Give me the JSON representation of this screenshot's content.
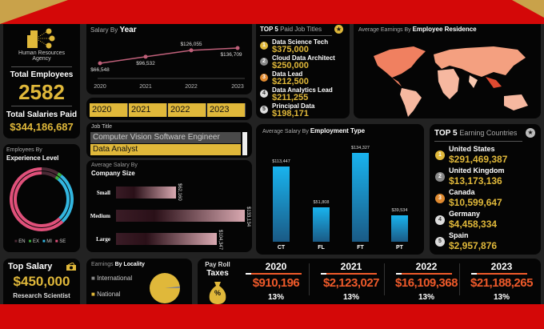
{
  "colors": {
    "accent": "#e0b83a",
    "banner": "#d40808",
    "bar_blue": "#19b3ee",
    "payroll": "#ef5a2a"
  },
  "agency": {
    "icon": "building-people-icon",
    "name": "Human Resources Agency"
  },
  "total_employees": {
    "label": "Total Employees",
    "value": "2582"
  },
  "total_salaries": {
    "label": "Total Salaries Paid",
    "value": "$344,186,687"
  },
  "experience": {
    "title_light": "Employees By",
    "title_bold": "Experience Level",
    "legend": [
      {
        "label": "EN",
        "color": "#4a2a35",
        "share": 9
      },
      {
        "label": "EX",
        "color": "#3cae3c",
        "share": 2
      },
      {
        "label": "MI",
        "color": "#32b6e0",
        "share": 27
      },
      {
        "label": "SE",
        "color": "#e0507a",
        "share": 62
      }
    ]
  },
  "salary_by_year": {
    "title_light": "Salary By",
    "title_bold": "Year",
    "points": [
      {
        "year": "2020",
        "value": 66548,
        "label": "$66,548"
      },
      {
        "year": "2021",
        "value": 96532,
        "label": "$96,532"
      },
      {
        "year": "2022",
        "value": 126055,
        "label": "$126,055"
      },
      {
        "year": "2023",
        "value": 136709,
        "label": "$136,709"
      }
    ]
  },
  "year_slicer": [
    "2020",
    "2021",
    "2022",
    "2023"
  ],
  "job_title": {
    "label": "Job Title",
    "options": [
      "Computer Vision Software Engineer",
      "Data Analyst"
    ],
    "selected": "Data Analyst"
  },
  "company_size": {
    "title_light": "Average Salary By",
    "title_bold": "Company Size",
    "bars": [
      {
        "label": "Small",
        "value": 62160,
        "text": "$62,160"
      },
      {
        "label": "Medium",
        "value": 133134,
        "text": "$133,134"
      },
      {
        "label": "Large",
        "value": 104347,
        "text": "$104,347"
      }
    ]
  },
  "top_jobs": {
    "title_bold": "TOP 5",
    "title_light": "Paid Job Titles",
    "icon": "star-icon",
    "items": [
      {
        "rank": "1",
        "title": "Data Science Tech",
        "value": "$375,000"
      },
      {
        "rank": "2",
        "title": "Cloud Data Architect",
        "value": "$250,000"
      },
      {
        "rank": "3",
        "title": "Data Lead",
        "value": "$212,500"
      },
      {
        "rank": "4",
        "title": "Data Analytics Lead",
        "value": "$211,255"
      },
      {
        "rank": "5",
        "title": "Principal Data",
        "value": "$198,171"
      }
    ]
  },
  "map": {
    "title_light": "Average Earnings By",
    "title_bold": "Employee Residence"
  },
  "employment_type": {
    "title_light": "Average Salary By",
    "title_bold": "Employment Type",
    "bars": [
      {
        "label": "CT",
        "value": 113447,
        "text": "$113,447"
      },
      {
        "label": "FL",
        "value": 51808,
        "text": "$51,808"
      },
      {
        "label": "FT",
        "value": 134327,
        "text": "$134,327"
      },
      {
        "label": "PT",
        "value": 39534,
        "text": "$39,534"
      }
    ]
  },
  "top_countries": {
    "title_bold": "TOP 5",
    "title_light": "Earning Countries",
    "icon": "star-icon",
    "items": [
      {
        "rank": "1",
        "name": "United States",
        "value": "$291,469,387"
      },
      {
        "rank": "2",
        "name": "United Kingdom",
        "value": "$13,173,136"
      },
      {
        "rank": "3",
        "name": "Canada",
        "value": "$10,599,647"
      },
      {
        "rank": "4",
        "name": "Germany",
        "value": "$4,458,334"
      },
      {
        "rank": "5",
        "name": "Spain",
        "value": "$2,957,876"
      }
    ]
  },
  "top_salary": {
    "label": "Top Salary",
    "value": "$450,000",
    "job": "Research Scientist",
    "icon": "money-icon"
  },
  "locality": {
    "title_light": "Earnings",
    "title_bold": "By Locality",
    "legend": [
      {
        "label": "International",
        "share": 2
      },
      {
        "label": "National",
        "share": 98
      }
    ]
  },
  "payroll": {
    "label1": "Pay Roll",
    "label2": "Taxes",
    "icon": "money-bag-percent-icon",
    "icon_text": "%",
    "years": [
      {
        "year": "2020",
        "value": "$910,196",
        "rate": "13%"
      },
      {
        "year": "2021",
        "value": "$2,123,027",
        "rate": "13%"
      },
      {
        "year": "2022",
        "value": "$16,109,368",
        "rate": "13%"
      },
      {
        "year": "2023",
        "value": "$21,188,265",
        "rate": "13%"
      }
    ]
  }
}
